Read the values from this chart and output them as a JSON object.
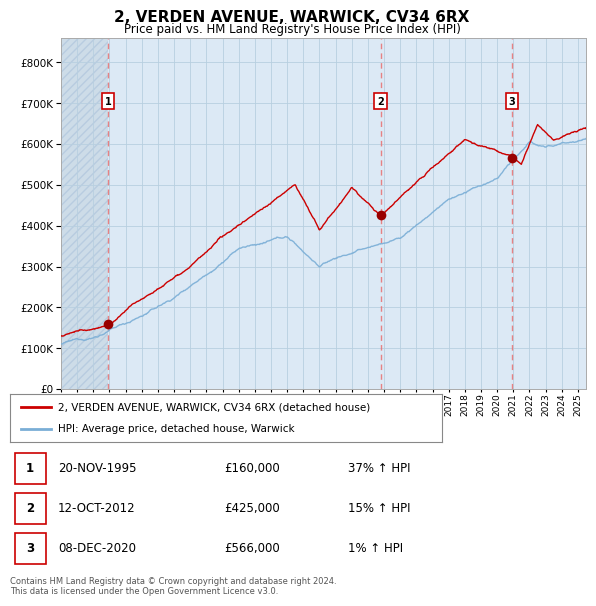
{
  "title": "2, VERDEN AVENUE, WARWICK, CV34 6RX",
  "subtitle": "Price paid vs. HM Land Registry's House Price Index (HPI)",
  "bg_color": "#dce9f5",
  "grid_color": "#b8cfe0",
  "red_line_color": "#cc0000",
  "blue_line_color": "#7aaed6",
  "sale_marker_color": "#990000",
  "dashed_line_color": "#e87070",
  "purchases": [
    {
      "date_num": 1995.9,
      "price": 160000,
      "label": "1",
      "date_str": "20-NOV-1995",
      "pct": "37%"
    },
    {
      "date_num": 2012.78,
      "price": 425000,
      "label": "2",
      "date_str": "12-OCT-2012",
      "pct": "15%"
    },
    {
      "date_num": 2020.93,
      "price": 566000,
      "label": "3",
      "date_str": "08-DEC-2020",
      "pct": "1%"
    }
  ],
  "ylabel_ticks": [
    0,
    100000,
    200000,
    300000,
    400000,
    500000,
    600000,
    700000,
    800000
  ],
  "ylim": [
    0,
    860000
  ],
  "xlim_start": 1993.0,
  "xlim_end": 2025.5,
  "legend_label_red": "2, VERDEN AVENUE, WARWICK, CV34 6RX (detached house)",
  "legend_label_blue": "HPI: Average price, detached house, Warwick",
  "footnote": "Contains HM Land Registry data © Crown copyright and database right 2024.\nThis data is licensed under the Open Government Licence v3.0."
}
